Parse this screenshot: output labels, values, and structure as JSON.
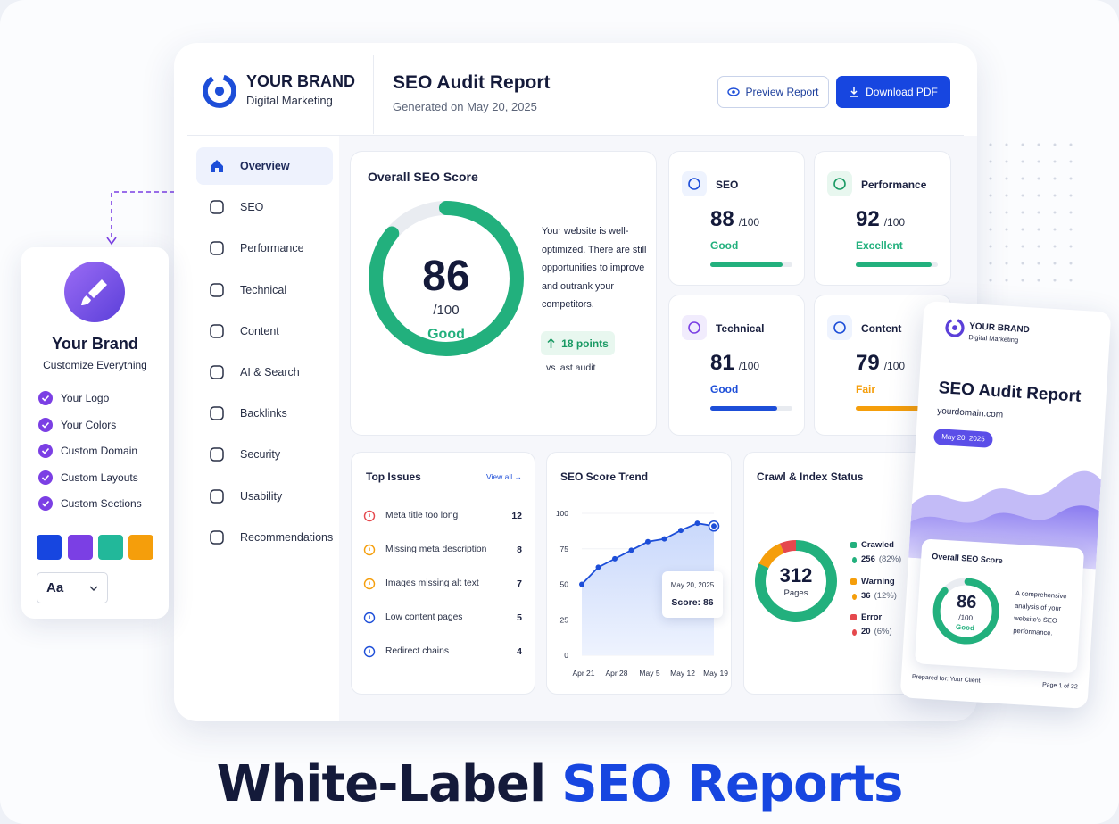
{
  "brand": {
    "name": "YOUR BRAND",
    "tagline": "Digital Marketing"
  },
  "header": {
    "title": "SEO Audit Report",
    "generated": "Generated on May 20, 2025",
    "preview_button": "Preview Report",
    "download_button": "Download PDF"
  },
  "nav": {
    "active": 0,
    "items": [
      "Overview",
      "SEO",
      "Performance",
      "Technical",
      "Content",
      "AI & Search",
      "Backlinks",
      "Security",
      "Usability",
      "Recommendations"
    ]
  },
  "overall": {
    "title": "Overall SEO Score",
    "score": 86,
    "max": {
      "value": 100,
      "label": "/100"
    },
    "status": "Good",
    "color": "#22b07d",
    "description": "Your website is well-optimized. There are still opportunities to improve and outrank your competitors.",
    "change": "18 points",
    "change_note": "vs last audit"
  },
  "categories": [
    {
      "name": "SEO",
      "score": 88,
      "max": {
        "value": 100,
        "label": "/100"
      },
      "status": "Good",
      "color": "#22b07d"
    },
    {
      "name": "Performance",
      "score": 92,
      "max": {
        "value": 100,
        "label": "/100"
      },
      "status": "Excellent",
      "color": "#22b07d"
    },
    {
      "name": "Technical",
      "score": 81,
      "max": {
        "value": 100,
        "label": "/100"
      },
      "status": "Good",
      "color": "#1d4ed8"
    },
    {
      "name": "Content",
      "score": 79,
      "max": {
        "value": 100,
        "label": "/100"
      },
      "status": "Fair",
      "color": "#f59e0b"
    }
  ],
  "issues": {
    "title": "Top Issues",
    "link": "View all →",
    "items": [
      {
        "label": "Meta title too long",
        "count": 12,
        "color": "#e5484d"
      },
      {
        "label": "Missing meta description",
        "count": 8,
        "color": "#f59e0b"
      },
      {
        "label": "Images missing alt text",
        "count": 7,
        "color": "#f59e0b"
      },
      {
        "label": "Low content pages",
        "count": 5,
        "color": "#1d4ed8"
      },
      {
        "label": "Redirect chains",
        "count": 4,
        "color": "#1d4ed8"
      }
    ]
  },
  "trend": {
    "type": "line",
    "title": "SEO Score Trend",
    "categories": [
      "Apr 21",
      null,
      "Apr 28",
      null,
      "May 5",
      null,
      "May 12",
      null,
      "May 19"
    ],
    "values": [
      50,
      62,
      68,
      74,
      80,
      82,
      88,
      93,
      91
    ],
    "ylim": [
      0,
      100
    ],
    "yticks": [
      0,
      25,
      50,
      75,
      100
    ],
    "color": "#1d4ed8",
    "tooltip": {
      "date": "May 20, 2025",
      "label": "Score: 86"
    }
  },
  "crawl": {
    "type": "pie",
    "title": "Crawl & Index Status",
    "total": 312,
    "total_label": "Pages",
    "segments": [
      {
        "name": "Crawled",
        "value": 256,
        "share_label": "(82%)",
        "color": "#22b07d"
      },
      {
        "name": "Warning",
        "value": 36,
        "share_label": "(12%)",
        "color": "#f59e0b"
      },
      {
        "name": "Error",
        "value": 20,
        "share_label": "(6%)",
        "color": "#e5484d"
      }
    ]
  },
  "brand_card": {
    "title": "Your Brand",
    "subtitle": "Customize Everything",
    "features": [
      "Your Logo",
      "Your Colors",
      "Custom Domain",
      "Custom Layouts",
      "Custom Sections"
    ],
    "swatches": [
      "#1746e0",
      "#7b3fe4",
      "#22b89a",
      "#f59e0b"
    ],
    "font_label": "Aa"
  },
  "preview": {
    "brand": "YOUR BRAND",
    "tagline": "Digital Marketing",
    "title": "SEO Audit Report",
    "domain": "yourdomain.com",
    "date": "May 20, 2025",
    "score_title": "Overall SEO Score",
    "score": 86,
    "max": {
      "value": 100,
      "label": "/100"
    },
    "status": "Good",
    "description": "A comprehensive analysis of your website's SEO performance.",
    "prepared": "Prepared for: Your Client",
    "page": "Page 1 of 32"
  },
  "headline": {
    "lead": "White-Label",
    "accent": "SEO Reports"
  }
}
